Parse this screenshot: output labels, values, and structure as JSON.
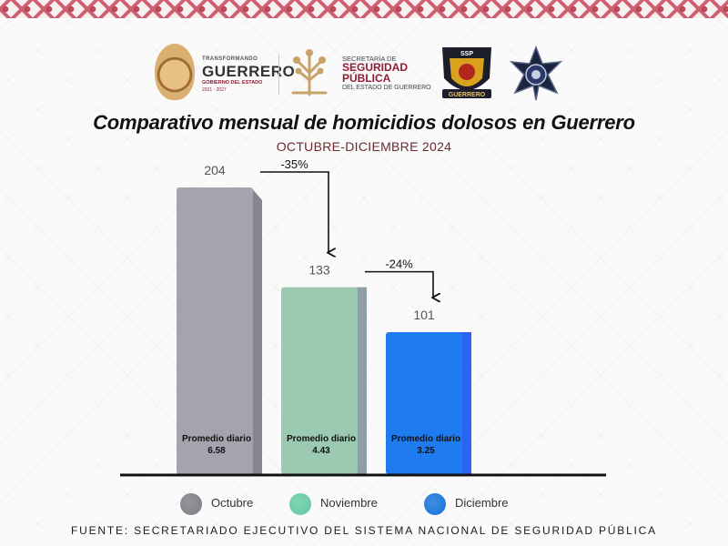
{
  "header": {
    "gov_logo": {
      "line1": "TRANSFORMANDO",
      "line2": "GUERRERO",
      "line3": "GOBIERNO DEL ESTADO",
      "line4": "2021 - 2027"
    },
    "ssp_logo": {
      "line1": "SECRETARÍA DE",
      "line2": "SEGURIDAD",
      "line3": "PÚBLICA",
      "line4": "DEL ESTADO DE GUERRERO"
    },
    "shield_text": "SSP",
    "shield_banner": "GUERRERO"
  },
  "title": "Comparativo mensual de homicidios dolosos en Guerrero",
  "subtitle": "OCTUBRE-DICIEMBRE 2024",
  "chart_data": {
    "type": "bar",
    "title": "Comparativo mensual de homicidios dolosos en Guerrero",
    "subtitle": "OCTUBRE-DICIEMBRE 2024",
    "categories": [
      "Octubre",
      "Noviembre",
      "Diciembre"
    ],
    "values": [
      204,
      133,
      101
    ],
    "ylim": [
      0,
      204
    ],
    "grid": false,
    "legend_position": "bottom",
    "inner_label": "Promedio diario",
    "daily_averages": [
      "6.58",
      "4.43",
      "3.25"
    ],
    "value_labels": [
      "204",
      "133",
      "101"
    ],
    "changes": [
      {
        "from": "Octubre",
        "to": "Noviembre",
        "label": "-35%"
      },
      {
        "from": "Noviembre",
        "to": "Diciembre",
        "label": "-24%"
      }
    ],
    "colors": [
      "#a3a4ad",
      "#9bc9b1",
      "#1f7bf0"
    ],
    "side_colors": [
      "#85868f",
      "#8f9ea6",
      "#2b63f3"
    ]
  },
  "legend": [
    {
      "label": "Octubre",
      "color": "#7c7d84"
    },
    {
      "label": "Noviembre",
      "color": "#63c9a2"
    },
    {
      "label": "Diciembre",
      "color": "#1272d9"
    }
  ],
  "source": "FUENTE: SECRETARIADO EJECUTIVO DEL SISTEMA NACIONAL DE SEGURIDAD PÚBLICA"
}
